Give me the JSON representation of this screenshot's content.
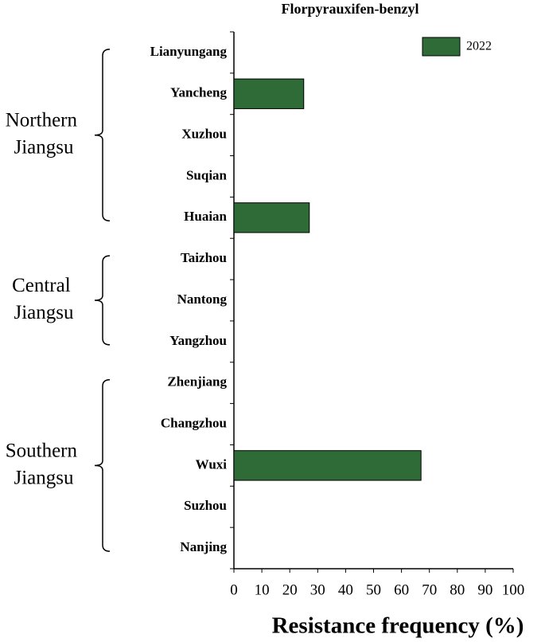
{
  "chart_data": {
    "type": "bar",
    "orientation": "horizontal",
    "title": "Florpyrauxifen-benzyl",
    "xlabel": "Resistance frequency (%)",
    "series_name": "2022",
    "color": "#2e6b36",
    "legend": "upper right",
    "groups": [
      {
        "label": "Northern Jiangsu",
        "categories": [
          "Lianyungang",
          "Yancheng",
          "Xuzhou",
          "Suqian",
          "Huaian"
        ],
        "values": [
          0,
          25,
          0,
          0,
          27
        ]
      },
      {
        "label": "Central Jiangsu",
        "categories": [
          "Taizhou",
          "Nantong",
          "Yangzhou"
        ],
        "values": [
          0,
          0,
          0
        ]
      },
      {
        "label": "Southern Jiangsu",
        "categories": [
          "Zhenjiang",
          "Changzhou",
          "Wuxi",
          "Suzhou",
          "Nanjing"
        ],
        "values": [
          0,
          0,
          67,
          0,
          0
        ]
      }
    ],
    "xlim": [
      0,
      100
    ],
    "xticks": [
      0,
      10,
      20,
      30,
      40,
      50,
      60,
      70,
      80,
      90,
      100
    ]
  }
}
